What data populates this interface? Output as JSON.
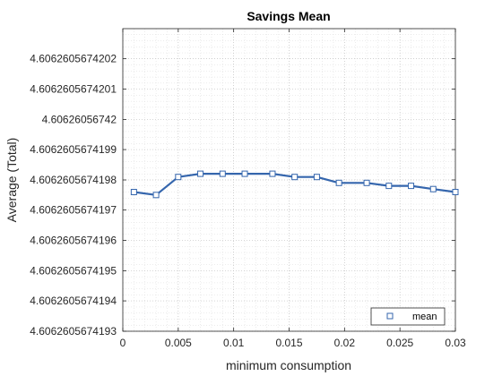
{
  "chart_data": {
    "type": "line",
    "title": "Savings Mean",
    "xlabel": "minimum consumption",
    "ylabel": "Average (Total)",
    "xlim": [
      0,
      0.03
    ],
    "ylim": [
      4.6062605674193,
      4.6062605674203
    ],
    "grid": true,
    "grid_minor": true,
    "legend_position": "bottom-right",
    "x_ticks": [
      0,
      0.005,
      0.01,
      0.015,
      0.02,
      0.025,
      0.03
    ],
    "x_tick_labels": [
      "0",
      "0.005",
      "0.01",
      "0.015",
      "0.02",
      "0.025",
      "0.03"
    ],
    "y_ticks": [
      4.6062605674193,
      4.6062605674194,
      4.6062605674195,
      4.6062605674196,
      4.6062605674197,
      4.6062605674198,
      4.6062605674199,
      4.60626056742,
      4.6062605674201,
      4.6062605674202
    ],
    "y_tick_labels": [
      "4.6062605674193",
      "4.6062605674194",
      "4.6062605674195",
      "4.6062605674196",
      "4.6062605674197",
      "4.6062605674198",
      "4.6062605674199",
      "4.60626056742",
      "4.6062605674201",
      "4.6062605674202"
    ],
    "series": [
      {
        "name": "mean",
        "color": "#3566ad",
        "marker": "square",
        "x": [
          0.001,
          0.003,
          0.005,
          0.007,
          0.009,
          0.011,
          0.0135,
          0.0155,
          0.0175,
          0.0195,
          0.022,
          0.024,
          0.026,
          0.028,
          0.03
        ],
        "y": [
          4.60626056741976,
          4.60626056741975,
          4.60626056741981,
          4.60626056741982,
          4.60626056741982,
          4.60626056741982,
          4.60626056741982,
          4.60626056741981,
          4.60626056741981,
          4.60626056741979,
          4.60626056741979,
          4.60626056741978,
          4.60626056741978,
          4.60626056741977,
          4.60626056741976
        ]
      }
    ]
  }
}
